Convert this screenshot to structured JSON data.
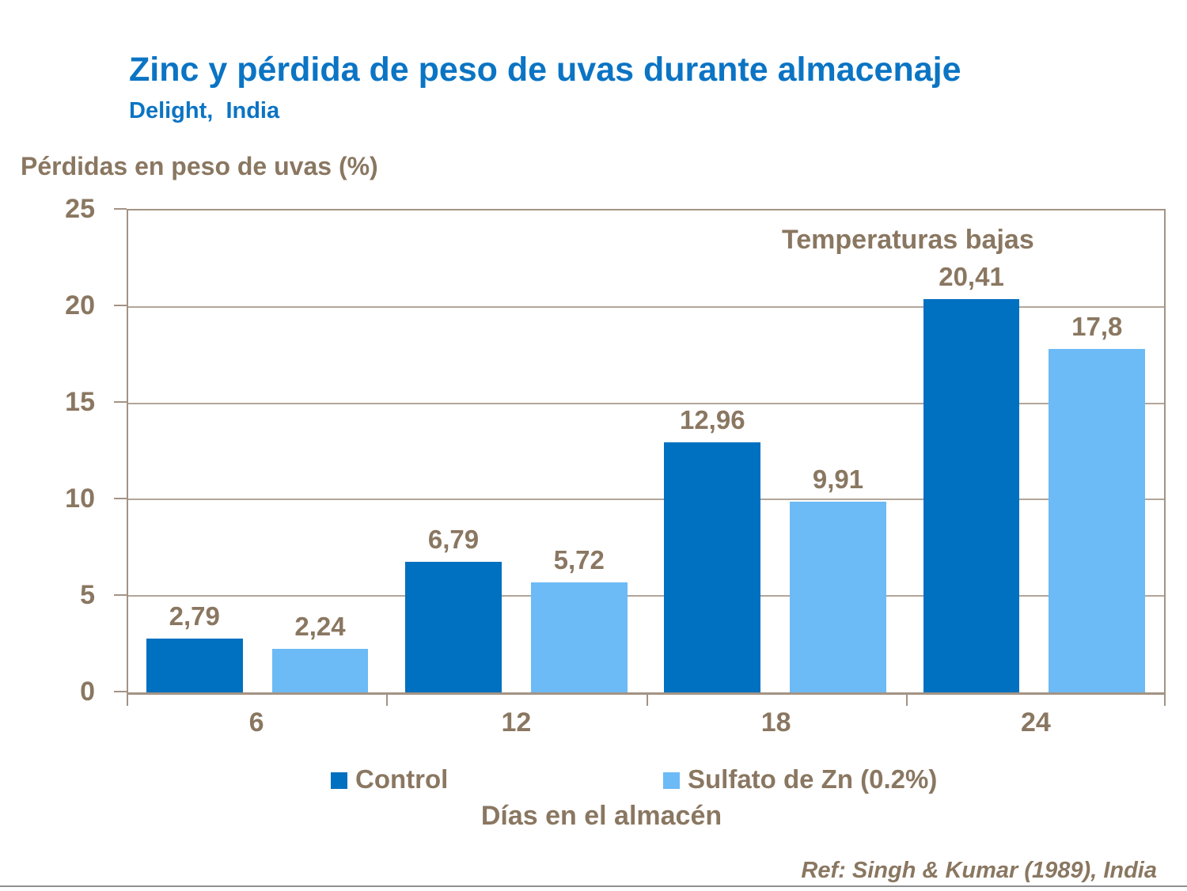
{
  "page": {
    "title": "Zinc y pérdida de peso de uvas durante almacenaje",
    "subtitle": "Delight,  India",
    "reference": "Ref: Singh & Kumar (1989), India"
  },
  "colors": {
    "title_blue": "#0b74c4",
    "text_brown": "#8a7761",
    "frame_border": "#a39384",
    "grid_line": "#b2a69a",
    "bottom_rule": "#8f8f8f",
    "control_bar": "#0070c0",
    "sulfato_bar": "#6cbaf6"
  },
  "chart_data": {
    "type": "bar",
    "title": "Zinc y pérdida de peso de uvas durante almacenaje",
    "ylabel": "Pérdidas en peso de uvas (%)",
    "xlabel": "Días en el almacén",
    "categories": [
      "6",
      "12",
      "18",
      "24"
    ],
    "series": [
      {
        "name": "Control",
        "color": "#0070c0",
        "values": [
          2.79,
          6.79,
          12.96,
          20.41
        ],
        "labels": [
          "2,79",
          "6,79",
          "12,96",
          "20,41"
        ]
      },
      {
        "name": "Sulfato de Zn (0.2%)",
        "color": "#6cbaf6",
        "values": [
          2.24,
          5.72,
          9.91,
          17.8
        ],
        "labels": [
          "2,24",
          "5,72",
          "9,91",
          "17,8"
        ]
      }
    ],
    "ylim": [
      0,
      25
    ],
    "yticks": [
      0,
      5,
      10,
      15,
      20,
      25
    ],
    "grid": true,
    "legend_position": "bottom",
    "annotation": "Temperaturas bajas"
  }
}
